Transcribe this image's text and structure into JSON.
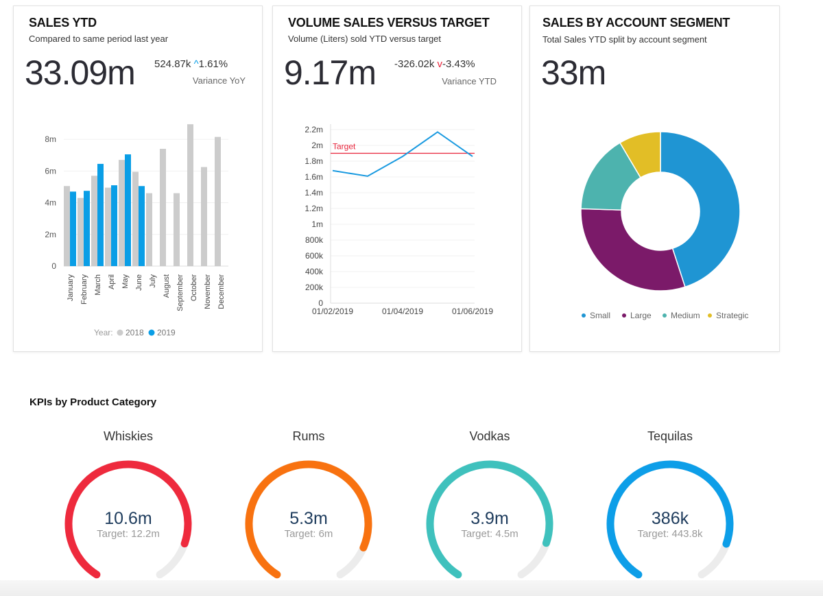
{
  "sales_ytd": {
    "title": "SALES YTD",
    "subtitle": "Compared to same period last year",
    "value": "33.09m",
    "variance_abs": "524.87k",
    "variance_pct": "1.61%",
    "variance_icon": "arrow-up-icon",
    "variance_label": "Variance YoY"
  },
  "volume": {
    "title": "VOLUME SALES VERSUS TARGET",
    "subtitle": "Volume (Liters) sold YTD versus target",
    "value": "9.17m",
    "variance_abs": "-326.02k",
    "variance_pct": "-3.43%",
    "variance_icon": "arrow-down-icon",
    "variance_label": "Variance YTD"
  },
  "segment": {
    "title": "SALES BY ACCOUNT SEGMENT",
    "subtitle": "Total Sales YTD split by account segment",
    "value": "33m"
  },
  "kpi_section_title": "KPIs by Product Category",
  "gauges": [
    {
      "name": "Whiskies",
      "value": "10.6m",
      "target": "Target: 12.2m",
      "fraction": 0.869,
      "color": "#ee2a3d"
    },
    {
      "name": "Rums",
      "value": "5.3m",
      "target": "Target: 6m",
      "fraction": 0.883,
      "color": "#f87210"
    },
    {
      "name": "Vodkas",
      "value": "3.9m",
      "target": "Target: 4.5m",
      "fraction": 0.867,
      "color": "#3fc1bd"
    },
    {
      "name": "Tequilas",
      "value": "386k",
      "target": "Target: 443.8k",
      "fraction": 0.87,
      "color": "#0d9ee8"
    }
  ],
  "chart_data": [
    {
      "type": "bar",
      "categories": [
        "January",
        "February",
        "March",
        "April",
        "May",
        "June",
        "July",
        "August",
        "September",
        "October",
        "November",
        "December"
      ],
      "series": [
        {
          "name": "2018",
          "color": "#cccccc",
          "values": [
            5.05,
            4.3,
            5.7,
            4.95,
            6.7,
            5.95,
            4.6,
            7.4,
            4.6,
            8.95,
            6.25,
            8.15
          ]
        },
        {
          "name": "2019",
          "color": "#0a9ee6",
          "values": [
            4.7,
            4.75,
            6.45,
            5.1,
            7.05,
            5.05,
            null,
            null,
            null,
            null,
            null,
            null
          ]
        }
      ],
      "ylim": [
        0,
        9
      ],
      "yticks": [
        {
          "v": 0,
          "label": "0"
        },
        {
          "v": 2,
          "label": "2m"
        },
        {
          "v": 4,
          "label": "4m"
        },
        {
          "v": 6,
          "label": "6m"
        },
        {
          "v": 8,
          "label": "8m"
        }
      ],
      "legend_title": "Year:",
      "legend": "bottom",
      "unit": "millions"
    },
    {
      "type": "line",
      "x": [
        "2019-02",
        "2019-03",
        "2019-04",
        "2019-05",
        "2019-06"
      ],
      "series": [
        {
          "name": "Volume",
          "color": "#1a9ae0",
          "values": [
            1.68,
            1.61,
            1.86,
            2.17,
            1.86
          ]
        }
      ],
      "target": {
        "label": "Target",
        "value": 1.9,
        "color": "#e8233a"
      },
      "ylim": [
        0,
        2.2
      ],
      "yticks": [
        "0",
        "200k",
        "400k",
        "600k",
        "800k",
        "1m",
        "1.2m",
        "1.4m",
        "1.6m",
        "1.8m",
        "2m",
        "2.2m"
      ],
      "xticks": [
        {
          "i": 0,
          "label": "01/02/2019"
        },
        {
          "i": 2,
          "label": "01/04/2019"
        },
        {
          "i": 4,
          "label": "01/06/2019"
        }
      ],
      "unit": "millions"
    },
    {
      "type": "pie",
      "donut": true,
      "slices": [
        {
          "name": "Small",
          "value": 45,
          "color": "#1f95d3"
        },
        {
          "name": "Large",
          "value": 30.5,
          "color": "#7b1a69"
        },
        {
          "name": "Medium",
          "value": 16,
          "color": "#4db3ae"
        },
        {
          "name": "Strategic",
          "value": 8.5,
          "color": "#e2be26"
        }
      ],
      "legend": "bottom",
      "unit": "percent"
    }
  ]
}
